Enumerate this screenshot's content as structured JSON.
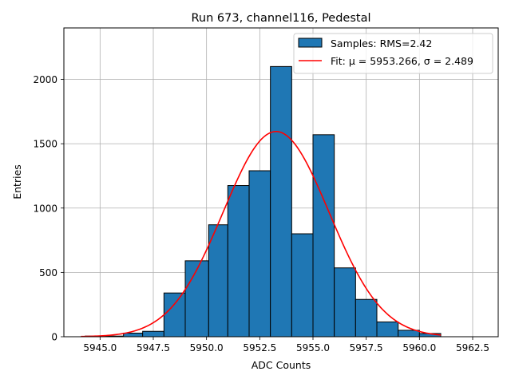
{
  "chart_data": {
    "type": "bar",
    "title": "Run 673, channel116, Pedestal",
    "xlabel": "ADC Counts",
    "ylabel": "Entries",
    "xlim": [
      5943.3,
      5963.7
    ],
    "ylim": [
      0,
      2400
    ],
    "xticks": [
      5945.0,
      5947.5,
      5950.0,
      5952.5,
      5955.0,
      5957.5,
      5960.0,
      5962.5
    ],
    "xtick_labels": [
      "5945.0",
      "5947.5",
      "5950.0",
      "5952.5",
      "5955.0",
      "5957.5",
      "5960.0",
      "5962.5"
    ],
    "yticks": [
      0,
      500,
      1000,
      1500,
      2000
    ],
    "ytick_labels": [
      "0",
      "500",
      "1000",
      "1500",
      "2000"
    ],
    "grid": true,
    "histogram": {
      "label": "Samples: RMS=2.42",
      "color": "#1f77b4",
      "bins": [
        {
          "left": 5944.3,
          "right": 5946.1,
          "count": 5
        },
        {
          "left": 5946.1,
          "right": 5947.0,
          "count": 28
        },
        {
          "left": 5947.0,
          "right": 5948.0,
          "count": 42
        },
        {
          "left": 5948.0,
          "right": 5949.0,
          "count": 340
        },
        {
          "left": 5949.0,
          "right": 5950.1,
          "count": 590
        },
        {
          "left": 5950.1,
          "right": 5951.0,
          "count": 870
        },
        {
          "left": 5951.0,
          "right": 5952.0,
          "count": 1175
        },
        {
          "left": 5952.0,
          "right": 5953.0,
          "count": 1290
        },
        {
          "left": 5953.0,
          "right": 5954.0,
          "count": 2100
        },
        {
          "left": 5954.0,
          "right": 5955.0,
          "count": 800
        },
        {
          "left": 5955.0,
          "right": 5956.0,
          "count": 1570
        },
        {
          "left": 5956.0,
          "right": 5957.0,
          "count": 535
        },
        {
          "left": 5957.0,
          "right": 5958.0,
          "count": 290
        },
        {
          "left": 5958.0,
          "right": 5959.0,
          "count": 115
        },
        {
          "left": 5959.0,
          "right": 5960.0,
          "count": 50
        },
        {
          "left": 5960.0,
          "right": 5961.0,
          "count": 25
        }
      ]
    },
    "fit": {
      "label": "Fit: μ = 5953.266, σ = 2.489",
      "color": "#ff0000",
      "mu": 5953.266,
      "sigma": 2.489,
      "amplitude": 1595,
      "x_range": [
        5944.1,
        5961.0
      ]
    },
    "legend": {
      "placement": "top-right"
    }
  }
}
